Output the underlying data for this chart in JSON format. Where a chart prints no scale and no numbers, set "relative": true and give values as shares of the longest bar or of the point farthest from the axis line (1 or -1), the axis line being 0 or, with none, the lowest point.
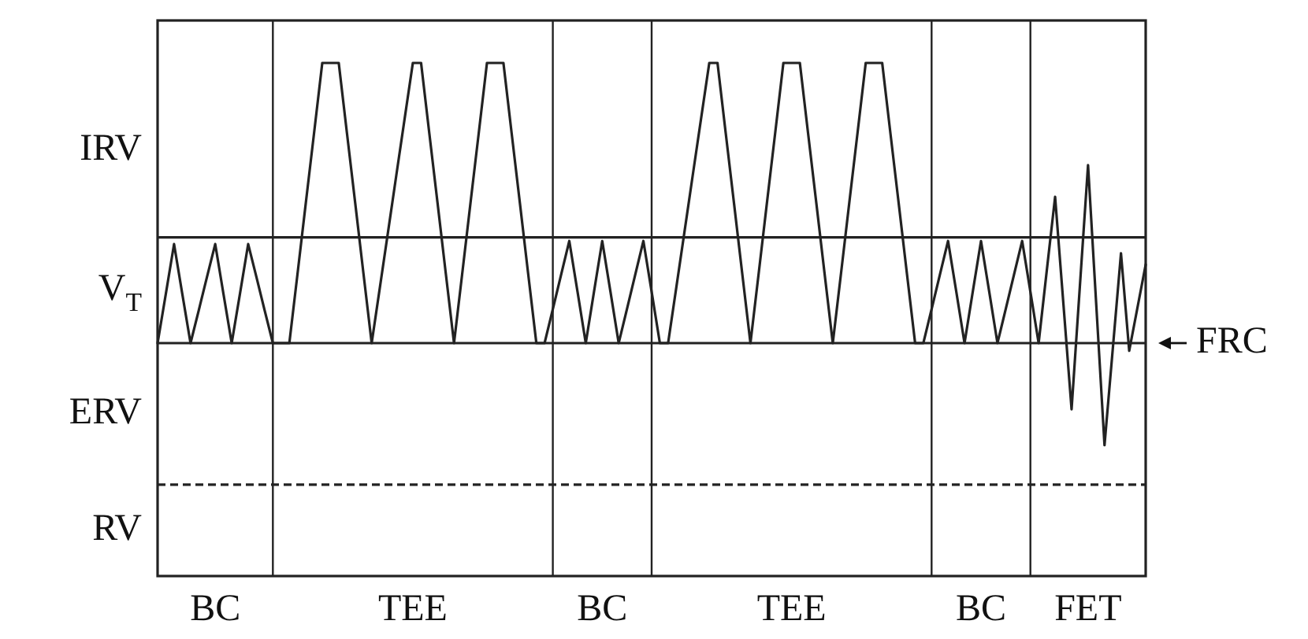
{
  "chart_data": {
    "type": "line",
    "relative": true,
    "categories": [
      null,
      null,
      null,
      null,
      null,
      null,
      null,
      "BC",
      null,
      null,
      null,
      null,
      null,
      null,
      null,
      null,
      null,
      null,
      null,
      null,
      null,
      null,
      null,
      null,
      null,
      null,
      null,
      null,
      null,
      null,
      null,
      "TEE",
      null,
      null,
      null,
      null,
      null,
      null,
      null,
      null,
      null,
      null,
      null,
      null,
      null,
      null,
      null,
      null,
      null,
      null,
      null,
      null,
      null,
      null,
      "BC",
      null,
      null,
      null,
      null,
      null,
      null,
      null,
      null,
      null,
      null,
      null,
      null,
      null,
      null,
      null,
      null,
      null,
      null,
      null,
      null,
      null,
      null,
      "TEE",
      null,
      null,
      null,
      null,
      null,
      null,
      null,
      null,
      null,
      null,
      null,
      null,
      null,
      null,
      null,
      null,
      null,
      null,
      null,
      null,
      null,
      null,
      "BC",
      null,
      null,
      null,
      null,
      null,
      null,
      null,
      null,
      null,
      null,
      null,
      null,
      "FET",
      null,
      null,
      null,
      null,
      null,
      null,
      null
    ],
    "series": [
      {
        "color": "#222222",
        "values": [
          0.454,
          0.55,
          0.647,
          0.55,
          0.454,
          0.518,
          0.583,
          0.647,
          0.55,
          0.454,
          0.55,
          0.647,
          0.583,
          0.518,
          0.454,
          0.454,
          0.454,
          0.59,
          0.727,
          0.863,
          1,
          1,
          1,
          0.863,
          0.727,
          0.59,
          0.454,
          0.563,
          0.672,
          0.782,
          0.891,
          1,
          1,
          0.863,
          0.727,
          0.59,
          0.454,
          0.59,
          0.727,
          0.863,
          1,
          1,
          1,
          0.863,
          0.727,
          0.59,
          0.454,
          0.454,
          0.52,
          0.587,
          0.653,
          0.554,
          0.454,
          0.554,
          0.653,
          0.554,
          0.454,
          0.52,
          0.587,
          0.653,
          0.554,
          0.454,
          0.454,
          0.563,
          0.672,
          0.782,
          0.891,
          1,
          1,
          0.863,
          0.727,
          0.59,
          0.454,
          0.59,
          0.727,
          0.863,
          1,
          1,
          1,
          0.863,
          0.727,
          0.59,
          0.454,
          0.59,
          0.727,
          0.863,
          1,
          1,
          1,
          0.863,
          0.727,
          0.59,
          0.454,
          0.454,
          0.52,
          0.587,
          0.653,
          0.554,
          0.454,
          0.554,
          0.653,
          0.554,
          0.454,
          0.52,
          0.587,
          0.653,
          0.554,
          0.454,
          0.597,
          0.739,
          0.532,
          0.325,
          0.563,
          0.801,
          0.528,
          0.255,
          0.442,
          0.629,
          0.439,
          0.523,
          0.607
        ]
      }
    ],
    "ref_lines": [
      {
        "axis": "y",
        "value": 0.66,
        "line_style": "solid",
        "color": "#222222"
      },
      {
        "axis": "y",
        "value": 0.454,
        "label": "FRC",
        "line_style": "solid",
        "color": "#222222"
      },
      {
        "axis": "y",
        "value": 0.178,
        "line_style": "dashed",
        "color": "#222222"
      }
    ],
    "annotations": [
      "IRV",
      "V$_{T}$",
      "ERV",
      "RV"
    ]
  }
}
